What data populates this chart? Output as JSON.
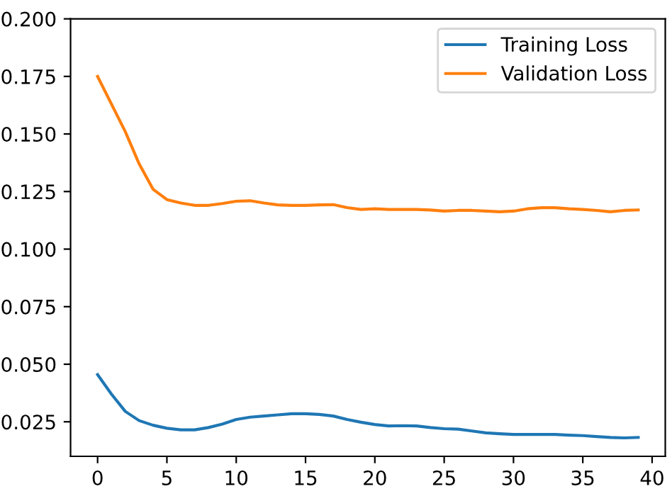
{
  "chart_data": {
    "type": "line",
    "x": [
      0,
      1,
      2,
      3,
      4,
      5,
      6,
      7,
      8,
      9,
      10,
      11,
      12,
      13,
      14,
      15,
      16,
      17,
      18,
      19,
      20,
      21,
      22,
      23,
      24,
      25,
      26,
      27,
      28,
      29,
      30,
      31,
      32,
      33,
      34,
      35,
      36,
      37,
      38,
      39
    ],
    "series": [
      {
        "name": "Training Loss",
        "color": "#1f77b4",
        "values": [
          0.0455,
          0.037,
          0.0295,
          0.0255,
          0.0235,
          0.0222,
          0.0215,
          0.0215,
          0.0225,
          0.024,
          0.026,
          0.027,
          0.0275,
          0.028,
          0.0285,
          0.0285,
          0.0282,
          0.0275,
          0.026,
          0.0248,
          0.0238,
          0.0232,
          0.0233,
          0.0232,
          0.0225,
          0.022,
          0.0218,
          0.021,
          0.0202,
          0.0198,
          0.0195,
          0.0195,
          0.0195,
          0.0195,
          0.0192,
          0.019,
          0.0186,
          0.0182,
          0.018,
          0.0182
        ]
      },
      {
        "name": "Validation Loss",
        "color": "#ff7f0e",
        "values": [
          0.175,
          0.163,
          0.151,
          0.137,
          0.126,
          0.1215,
          0.12,
          0.119,
          0.119,
          0.1198,
          0.1208,
          0.121,
          0.12,
          0.1192,
          0.119,
          0.119,
          0.1192,
          0.1193,
          0.118,
          0.1172,
          0.1175,
          0.1172,
          0.1172,
          0.1172,
          0.117,
          0.1165,
          0.1168,
          0.1168,
          0.1165,
          0.1162,
          0.1165,
          0.1175,
          0.118,
          0.118,
          0.1175,
          0.1172,
          0.1168,
          0.1162,
          0.1168,
          0.117
        ]
      }
    ],
    "xlim": [
      -1.95,
      40.95
    ],
    "xticks": [
      0,
      5,
      10,
      15,
      20,
      25,
      30,
      35,
      40
    ],
    "ylim": [
      0.01,
      0.2
    ],
    "yticks": [
      {
        "value": 0.025,
        "label": "0.025"
      },
      {
        "value": 0.05,
        "label": "0.050"
      },
      {
        "value": 0.075,
        "label": "0.075"
      },
      {
        "value": 0.1,
        "label": "0.100"
      },
      {
        "value": 0.125,
        "label": "0.125"
      },
      {
        "value": 0.15,
        "label": "0.150"
      },
      {
        "value": 0.175,
        "label": "0.175"
      },
      {
        "value": 0.2,
        "label": "0.200"
      }
    ],
    "legend": "top right",
    "grid": false
  }
}
